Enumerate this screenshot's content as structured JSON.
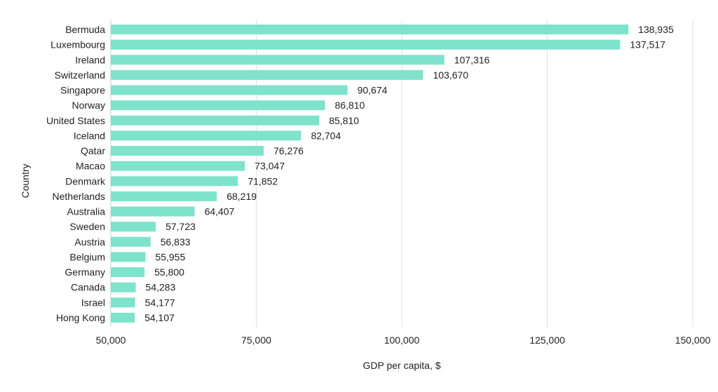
{
  "chart_data": {
    "type": "bar",
    "orientation": "horizontal",
    "title": "",
    "xlabel": "GDP per capita, $",
    "ylabel": "Country",
    "xlim": [
      50000,
      150000
    ],
    "xticks": [
      50000,
      75000,
      100000,
      125000,
      150000
    ],
    "xtick_labels": [
      "50,000",
      "75,000",
      "100,000",
      "125,000",
      "150,000"
    ],
    "grid": "vertical",
    "bar_color": "#7fe3cc",
    "categories": [
      "Bermuda",
      "Luxembourg",
      "Ireland",
      "Switzerland",
      "Singapore",
      "Norway",
      "United States",
      "Iceland",
      "Qatar",
      "Macao",
      "Denmark",
      "Netherlands",
      "Australia",
      "Sweden",
      "Austria",
      "Belgium",
      "Germany",
      "Canada",
      "Israel",
      "Hong Kong"
    ],
    "values": [
      138935,
      137517,
      107316,
      103670,
      90674,
      86810,
      85810,
      82704,
      76276,
      73047,
      71852,
      68219,
      64407,
      57723,
      56833,
      55955,
      55800,
      54283,
      54177,
      54107
    ],
    "value_labels": [
      "138,935",
      "137,517",
      "107,316",
      "103,670",
      "90,674",
      "86,810",
      "85,810",
      "82,704",
      "76,276",
      "73,047",
      "71,852",
      "68,219",
      "64,407",
      "57,723",
      "56,833",
      "55,955",
      "55,800",
      "54,283",
      "54,177",
      "54,107"
    ]
  }
}
